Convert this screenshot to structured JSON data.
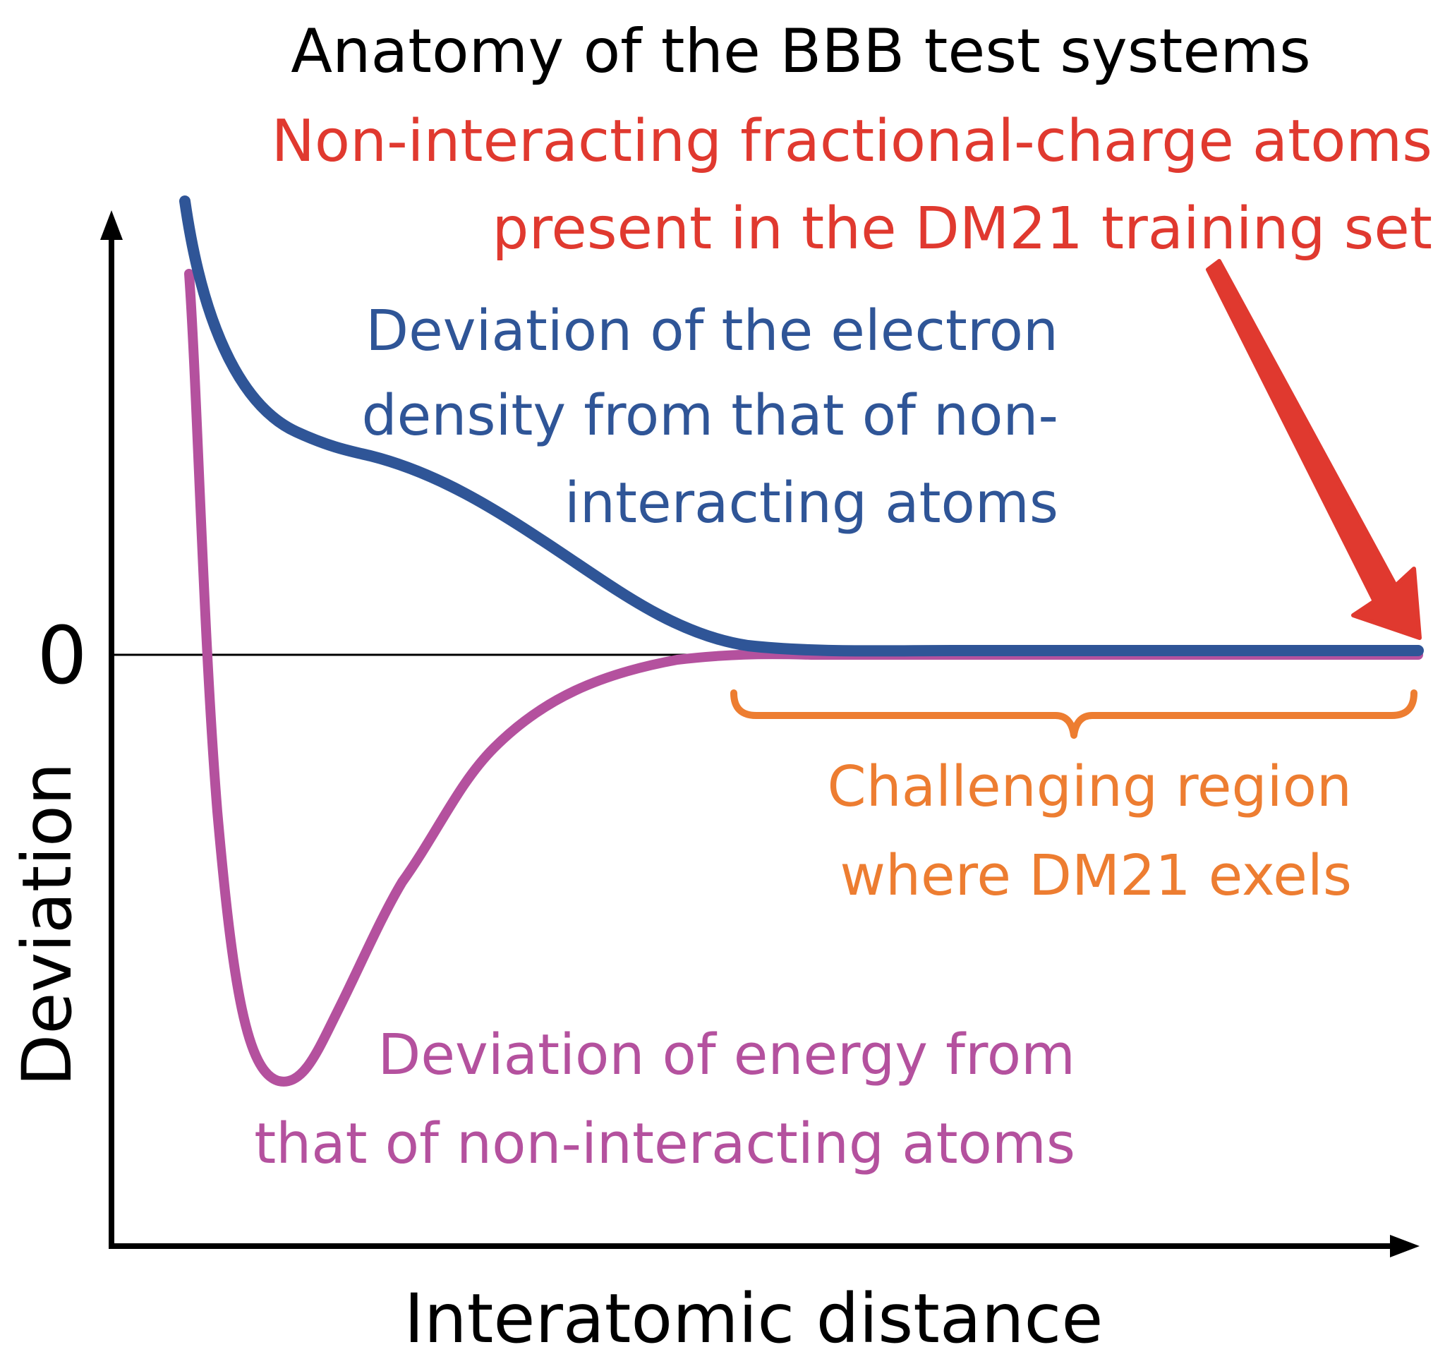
{
  "title": "Anatomy of the BBB test systems",
  "subtitle": {
    "line1": "Non-interacting fractional-charge atoms",
    "line2": "present in the DM21 training set"
  },
  "density_label": {
    "line1": "Deviation of the electron",
    "line2": "density from that of non-",
    "line3": "interacting atoms"
  },
  "energy_label": {
    "line1": "Deviation of energy from",
    "line2": "that of non-interacting atoms"
  },
  "region_label": {
    "line1": "Challenging region",
    "line2": "where DM21 exels"
  },
  "axes": {
    "x_label": "Interatomic distance",
    "y_label": "Deviation",
    "zero_label": "0"
  },
  "colors": {
    "density_curve": "#2f5597",
    "energy_curve": "#b4519e",
    "region": "#ed7d31",
    "training_set": "#e0392f",
    "text": "#000000"
  }
}
